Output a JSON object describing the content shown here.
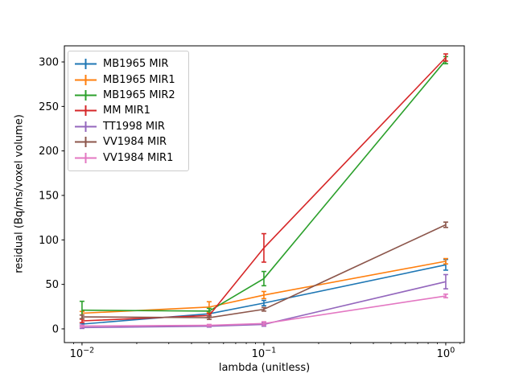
{
  "chart_data": {
    "type": "line",
    "title": "",
    "xlabel": "lambda (unitless)",
    "ylabel": "residual (Bq/ms/voxel volume)",
    "x_scale": "log",
    "grid": false,
    "legend_position": "upper left",
    "background_color": "#ffffff",
    "axis_color": "#000000",
    "x": [
      0.01,
      0.05,
      0.1,
      1.0
    ],
    "series": [
      {
        "name": "MB1965 MIR",
        "color": "#1f77b4",
        "values": [
          5.4,
          17,
          29,
          72
        ],
        "yerr": [
          1,
          2,
          3,
          6
        ]
      },
      {
        "name": "MB1965 MIR1",
        "color": "#ff7f0e",
        "values": [
          17.6,
          24.5,
          38,
          76
        ],
        "yerr": [
          2,
          6,
          4,
          3
        ]
      },
      {
        "name": "MB1965 MIR2",
        "color": "#2ca02c",
        "values": [
          21,
          20,
          56.5,
          302
        ],
        "yerr": [
          10,
          3,
          8,
          4
        ]
      },
      {
        "name": "MM MIR1",
        "color": "#d62728",
        "values": [
          9,
          15,
          91,
          305
        ],
        "yerr": [
          2,
          2,
          16,
          4
        ]
      },
      {
        "name": "TT1998 MIR",
        "color": "#9467bd",
        "values": [
          1.5,
          3,
          5,
          53
        ],
        "yerr": [
          1,
          1,
          2,
          8
        ]
      },
      {
        "name": "VV1984 MIR",
        "color": "#8c564b",
        "values": [
          13.5,
          12.6,
          22,
          117
        ],
        "yerr": [
          2,
          2,
          2,
          3
        ]
      },
      {
        "name": "VV1984 MIR1",
        "color": "#e377c2",
        "values": [
          3.2,
          4,
          6,
          37
        ],
        "yerr": [
          1,
          1,
          2,
          2
        ]
      }
    ],
    "yticks": [
      0,
      50,
      100,
      150,
      200,
      250,
      300
    ],
    "xticks": [
      {
        "value": 0.01,
        "base": "10",
        "exp": "−2"
      },
      {
        "value": 0.1,
        "base": "10",
        "exp": "−1"
      },
      {
        "value": 1.0,
        "base": "10",
        "exp": "0"
      }
    ],
    "xminorticks": [
      0.009,
      0.02,
      0.03,
      0.04,
      0.05,
      0.06,
      0.07,
      0.08,
      0.09,
      0.2,
      0.3,
      0.4,
      0.5,
      0.6,
      0.7,
      0.8,
      0.9,
      1.2
    ],
    "ylim": [
      -15.4,
      318.1
    ],
    "xlim_log": [
      -2.097,
      0.102
    ]
  }
}
